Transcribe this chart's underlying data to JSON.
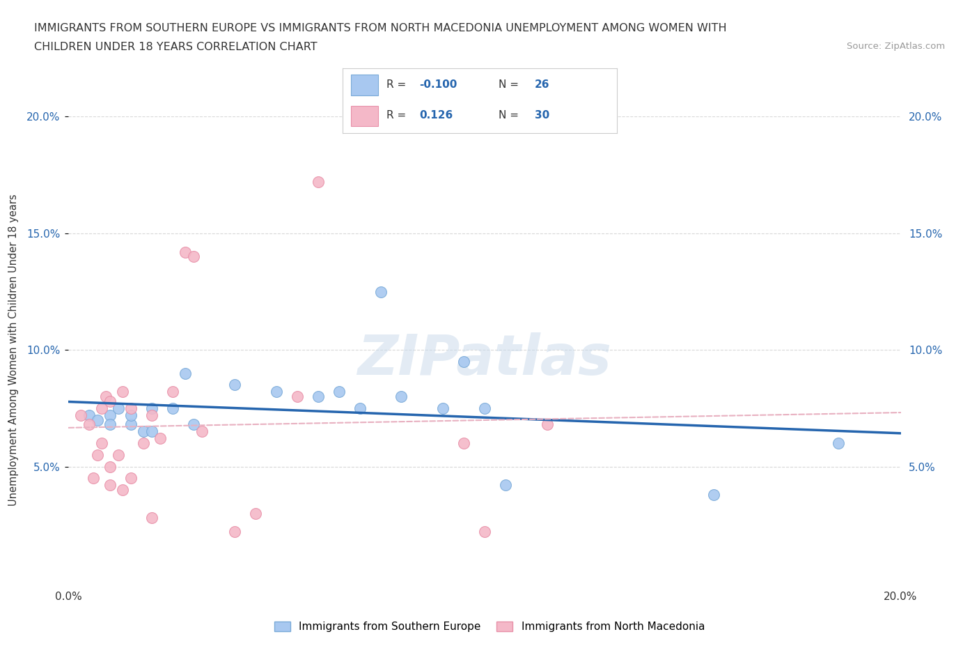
{
  "title_line1": "IMMIGRANTS FROM SOUTHERN EUROPE VS IMMIGRANTS FROM NORTH MACEDONIA UNEMPLOYMENT AMONG WOMEN WITH",
  "title_line2": "CHILDREN UNDER 18 YEARS CORRELATION CHART",
  "source": "Source: ZipAtlas.com",
  "ylabel": "Unemployment Among Women with Children Under 18 years",
  "xlim": [
    0.0,
    0.2
  ],
  "ylim": [
    0.0,
    0.2
  ],
  "blue_R": -0.1,
  "blue_N": 26,
  "pink_R": 0.126,
  "pink_N": 30,
  "blue_color": "#a8c8f0",
  "blue_edge_color": "#7aaad8",
  "pink_color": "#f4b8c8",
  "pink_edge_color": "#e890a8",
  "blue_line_color": "#2565ae",
  "pink_line_color": "#e8b0c0",
  "grid_color": "#d8d8d8",
  "watermark": "ZIPatlas",
  "blue_label": "Immigrants from Southern Europe",
  "pink_label": "Immigrants from North Macedonia",
  "blue_scatter_x": [
    0.005,
    0.007,
    0.01,
    0.01,
    0.012,
    0.015,
    0.015,
    0.018,
    0.02,
    0.02,
    0.025,
    0.028,
    0.03,
    0.04,
    0.05,
    0.06,
    0.065,
    0.07,
    0.075,
    0.08,
    0.09,
    0.095,
    0.1,
    0.105,
    0.155,
    0.185
  ],
  "blue_scatter_y": [
    0.072,
    0.07,
    0.072,
    0.068,
    0.075,
    0.068,
    0.072,
    0.065,
    0.065,
    0.075,
    0.075,
    0.09,
    0.068,
    0.085,
    0.082,
    0.08,
    0.082,
    0.075,
    0.125,
    0.08,
    0.075,
    0.095,
    0.075,
    0.042,
    0.038,
    0.06
  ],
  "pink_scatter_x": [
    0.003,
    0.005,
    0.006,
    0.007,
    0.008,
    0.008,
    0.009,
    0.01,
    0.01,
    0.01,
    0.012,
    0.013,
    0.013,
    0.015,
    0.015,
    0.018,
    0.02,
    0.02,
    0.022,
    0.025,
    0.028,
    0.03,
    0.032,
    0.04,
    0.045,
    0.055,
    0.06,
    0.095,
    0.1,
    0.115
  ],
  "pink_scatter_y": [
    0.072,
    0.068,
    0.045,
    0.055,
    0.06,
    0.075,
    0.08,
    0.042,
    0.05,
    0.078,
    0.055,
    0.04,
    0.082,
    0.045,
    0.075,
    0.06,
    0.028,
    0.072,
    0.062,
    0.082,
    0.142,
    0.14,
    0.065,
    0.022,
    0.03,
    0.08,
    0.172,
    0.06,
    0.022,
    0.068
  ]
}
